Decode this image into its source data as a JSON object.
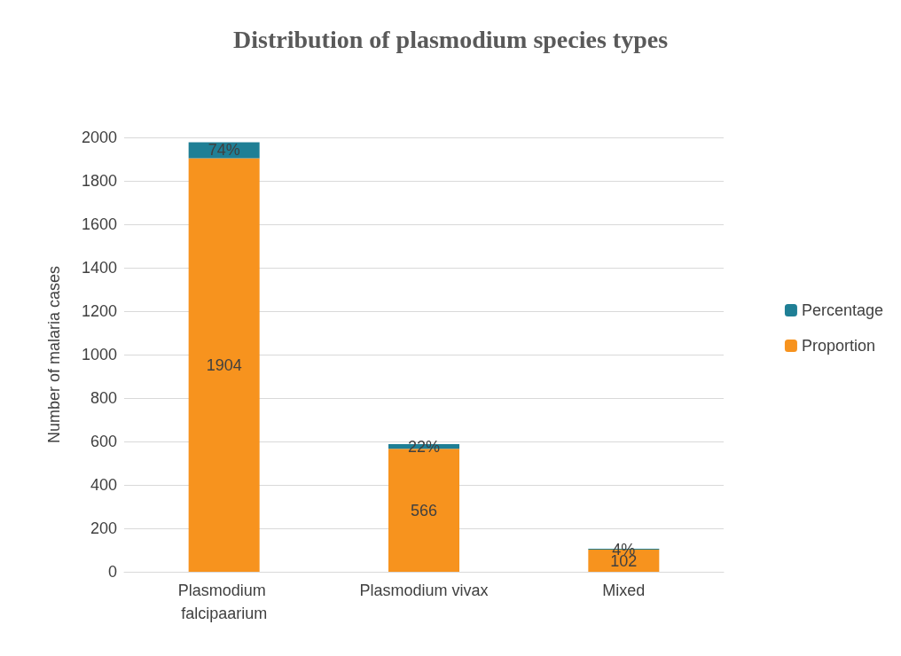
{
  "chart_data": {
    "type": "bar",
    "title": "Distribution of plasmodium species types",
    "ylabel": "Number of malaria cases",
    "categories": [
      "Plasmodium falcipaarium",
      "Plasmodium vivax",
      "Mixed"
    ],
    "stacked": true,
    "series": [
      {
        "name": "Proportion",
        "color": "#f7931e",
        "values": [
          1904,
          566,
          102
        ],
        "value_labels": [
          "1904",
          "566",
          "102"
        ]
      },
      {
        "name": "Percentage",
        "color": "#1f7f95",
        "values": [
          74,
          22,
          4
        ],
        "value_labels": [
          "74%",
          "22%",
          "4%"
        ]
      }
    ],
    "ylim": [
      0,
      2000
    ],
    "yticks": [
      0,
      200,
      400,
      600,
      800,
      1000,
      1200,
      1400,
      1600,
      1800,
      2000
    ],
    "grid": "y",
    "legend": "right"
  }
}
